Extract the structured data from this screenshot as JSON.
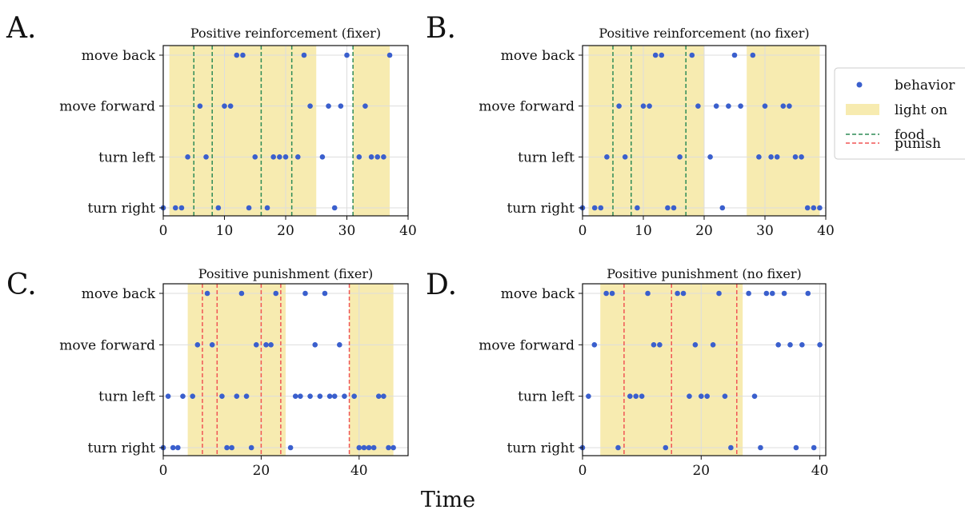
{
  "figure": {
    "xlabel": "Time",
    "colors": {
      "behavior": "#3a5fcd",
      "light": "#f7ebb0",
      "food": "#2e8b57",
      "punish": "#f05555",
      "grid": "#dddddd"
    }
  },
  "legend": {
    "placement": "right of panel B",
    "items": [
      {
        "label": "behavior",
        "symbol": "dot"
      },
      {
        "label": "light on",
        "symbol": "patch"
      },
      {
        "label": "food",
        "symbol": "dashed-green"
      },
      {
        "label": "punish",
        "symbol": "dashed-red"
      }
    ]
  },
  "chart_data": [
    {
      "type": "scatter",
      "panel": "A.",
      "title": "Positive reinforcement (fixer)",
      "categories": [
        "turn right",
        "turn left",
        "move forward",
        "move back"
      ],
      "xlim": [
        0,
        40
      ],
      "xticks": [
        0,
        10,
        20,
        30,
        40
      ],
      "light_on": [
        [
          1,
          25
        ],
        [
          31,
          37
        ]
      ],
      "food": [
        5,
        8,
        16,
        21,
        31
      ],
      "punish": [],
      "behavior": [
        [
          0,
          "turn right"
        ],
        [
          2,
          "turn right"
        ],
        [
          3,
          "turn right"
        ],
        [
          4,
          "turn left"
        ],
        [
          6,
          "move forward"
        ],
        [
          7,
          "turn left"
        ],
        [
          9,
          "turn right"
        ],
        [
          10,
          "move forward"
        ],
        [
          11,
          "move forward"
        ],
        [
          12,
          "move back"
        ],
        [
          13,
          "move back"
        ],
        [
          14,
          "turn right"
        ],
        [
          15,
          "turn left"
        ],
        [
          17,
          "turn right"
        ],
        [
          18,
          "turn left"
        ],
        [
          19,
          "turn left"
        ],
        [
          20,
          "turn left"
        ],
        [
          22,
          "turn left"
        ],
        [
          23,
          "move back"
        ],
        [
          24,
          "move forward"
        ],
        [
          26,
          "turn left"
        ],
        [
          27,
          "move forward"
        ],
        [
          28,
          "turn right"
        ],
        [
          29,
          "move forward"
        ],
        [
          30,
          "move back"
        ],
        [
          32,
          "turn left"
        ],
        [
          33,
          "move forward"
        ],
        [
          34,
          "turn left"
        ],
        [
          35,
          "turn left"
        ],
        [
          36,
          "turn left"
        ],
        [
          37,
          "move back"
        ]
      ]
    },
    {
      "type": "scatter",
      "panel": "B.",
      "title": "Positive reinforcement (no fixer)",
      "categories": [
        "turn right",
        "turn left",
        "move forward",
        "move back"
      ],
      "xlim": [
        0,
        40
      ],
      "xticks": [
        0,
        10,
        20,
        30,
        40
      ],
      "light_on": [
        [
          1,
          20
        ],
        [
          27,
          39
        ]
      ],
      "food": [
        5,
        8,
        17
      ],
      "punish": [],
      "behavior": [
        [
          0,
          "turn right"
        ],
        [
          2,
          "turn right"
        ],
        [
          3,
          "turn right"
        ],
        [
          4,
          "turn left"
        ],
        [
          6,
          "move forward"
        ],
        [
          7,
          "turn left"
        ],
        [
          9,
          "turn right"
        ],
        [
          10,
          "move forward"
        ],
        [
          11,
          "move forward"
        ],
        [
          12,
          "move back"
        ],
        [
          13,
          "move back"
        ],
        [
          14,
          "turn right"
        ],
        [
          15,
          "turn right"
        ],
        [
          16,
          "turn left"
        ],
        [
          18,
          "move back"
        ],
        [
          19,
          "move forward"
        ],
        [
          21,
          "turn left"
        ],
        [
          22,
          "move forward"
        ],
        [
          23,
          "turn right"
        ],
        [
          24,
          "move forward"
        ],
        [
          25,
          "move back"
        ],
        [
          26,
          "move forward"
        ],
        [
          28,
          "move back"
        ],
        [
          29,
          "turn left"
        ],
        [
          30,
          "move forward"
        ],
        [
          31,
          "turn left"
        ],
        [
          32,
          "turn left"
        ],
        [
          33,
          "move forward"
        ],
        [
          34,
          "move forward"
        ],
        [
          35,
          "turn left"
        ],
        [
          36,
          "turn left"
        ],
        [
          37,
          "turn right"
        ],
        [
          38,
          "turn right"
        ],
        [
          39,
          "turn right"
        ]
      ]
    },
    {
      "type": "scatter",
      "panel": "C.",
      "title": "Positive punishment (fixer)",
      "categories": [
        "turn right",
        "turn left",
        "move forward",
        "move back"
      ],
      "xlim": [
        0,
        50
      ],
      "xticks": [
        0,
        20,
        40
      ],
      "light_on": [
        [
          5,
          25
        ],
        [
          38,
          47
        ]
      ],
      "food": [],
      "punish": [
        8,
        11,
        20,
        24,
        38
      ],
      "behavior": [
        [
          0,
          "turn right"
        ],
        [
          1,
          "turn left"
        ],
        [
          2,
          "turn right"
        ],
        [
          3,
          "turn right"
        ],
        [
          4,
          "turn left"
        ],
        [
          6,
          "turn left"
        ],
        [
          7,
          "move forward"
        ],
        [
          9,
          "move back"
        ],
        [
          10,
          "move forward"
        ],
        [
          12,
          "turn left"
        ],
        [
          13,
          "turn right"
        ],
        [
          14,
          "turn right"
        ],
        [
          15,
          "turn left"
        ],
        [
          16,
          "move back"
        ],
        [
          17,
          "turn left"
        ],
        [
          18,
          "turn right"
        ],
        [
          19,
          "move forward"
        ],
        [
          21,
          "move forward"
        ],
        [
          22,
          "move forward"
        ],
        [
          23,
          "move back"
        ],
        [
          26,
          "turn right"
        ],
        [
          27,
          "turn left"
        ],
        [
          28,
          "turn left"
        ],
        [
          29,
          "move back"
        ],
        [
          30,
          "turn left"
        ],
        [
          31,
          "move forward"
        ],
        [
          32,
          "turn left"
        ],
        [
          33,
          "move back"
        ],
        [
          34,
          "turn left"
        ],
        [
          35,
          "turn left"
        ],
        [
          36,
          "move forward"
        ],
        [
          37,
          "turn left"
        ],
        [
          39,
          "turn left"
        ],
        [
          40,
          "turn right"
        ],
        [
          41,
          "turn right"
        ],
        [
          42,
          "turn right"
        ],
        [
          43,
          "turn right"
        ],
        [
          44,
          "turn left"
        ],
        [
          45,
          "turn left"
        ],
        [
          46,
          "turn right"
        ],
        [
          47,
          "turn right"
        ]
      ]
    },
    {
      "type": "scatter",
      "panel": "D.",
      "title": "Positive punishment (no fixer)",
      "categories": [
        "turn right",
        "turn left",
        "move forward",
        "move back"
      ],
      "xlim": [
        0,
        41
      ],
      "xticks": [
        0,
        20,
        40
      ],
      "light_on": [
        [
          3,
          27
        ]
      ],
      "food": [],
      "punish": [
        7,
        15,
        26
      ],
      "behavior": [
        [
          0,
          "turn right"
        ],
        [
          1,
          "turn left"
        ],
        [
          2,
          "move forward"
        ],
        [
          4,
          "move back"
        ],
        [
          5,
          "move back"
        ],
        [
          6,
          "turn right"
        ],
        [
          8,
          "turn left"
        ],
        [
          9,
          "turn left"
        ],
        [
          10,
          "turn left"
        ],
        [
          11,
          "move back"
        ],
        [
          12,
          "move forward"
        ],
        [
          13,
          "move forward"
        ],
        [
          14,
          "turn right"
        ],
        [
          16,
          "move back"
        ],
        [
          17,
          "move back"
        ],
        [
          18,
          "turn left"
        ],
        [
          19,
          "move forward"
        ],
        [
          20,
          "turn left"
        ],
        [
          21,
          "turn left"
        ],
        [
          22,
          "move forward"
        ],
        [
          23,
          "move back"
        ],
        [
          24,
          "turn left"
        ],
        [
          25,
          "turn right"
        ],
        [
          28,
          "move back"
        ],
        [
          29,
          "turn left"
        ],
        [
          30,
          "turn right"
        ],
        [
          31,
          "move back"
        ],
        [
          32,
          "move back"
        ],
        [
          33,
          "move forward"
        ],
        [
          34,
          "move back"
        ],
        [
          35,
          "move forward"
        ],
        [
          36,
          "turn right"
        ],
        [
          37,
          "move forward"
        ],
        [
          38,
          "move back"
        ],
        [
          39,
          "turn right"
        ],
        [
          40,
          "move forward"
        ]
      ]
    }
  ]
}
